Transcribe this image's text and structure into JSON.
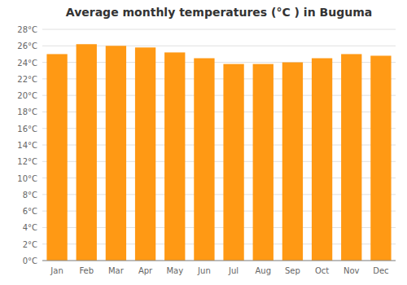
{
  "chart_data": {
    "type": "bar",
    "title": "Average monthly temperatures (°C ) in Buguma",
    "categories": [
      "Jan",
      "Feb",
      "Mar",
      "Apr",
      "May",
      "Jun",
      "Jul",
      "Aug",
      "Sep",
      "Oct",
      "Nov",
      "Dec"
    ],
    "values": [
      25.0,
      26.2,
      26.0,
      25.8,
      25.2,
      24.5,
      23.8,
      23.8,
      24.0,
      24.5,
      25.0,
      24.8
    ],
    "color": "#FF9914",
    "ylim": [
      0,
      28
    ],
    "yticks": [
      {
        "value": 0,
        "label": "0°C"
      },
      {
        "value": 2,
        "label": "2°C"
      },
      {
        "value": 4,
        "label": "4°C"
      },
      {
        "value": 6,
        "label": "6°C"
      },
      {
        "value": 8,
        "label": "8°C"
      },
      {
        "value": 10,
        "label": "10°C"
      },
      {
        "value": 12,
        "label": "12°C"
      },
      {
        "value": 14,
        "label": "14°C"
      },
      {
        "value": 16,
        "label": "16°C"
      },
      {
        "value": 18,
        "label": "18°C"
      },
      {
        "value": 20,
        "label": "20°C"
      },
      {
        "value": 22,
        "label": "22°C"
      },
      {
        "value": 24,
        "label": "24°C"
      },
      {
        "value": 26,
        "label": "26°C"
      },
      {
        "value": 28,
        "label": "28°C"
      }
    ],
    "grid": true
  }
}
